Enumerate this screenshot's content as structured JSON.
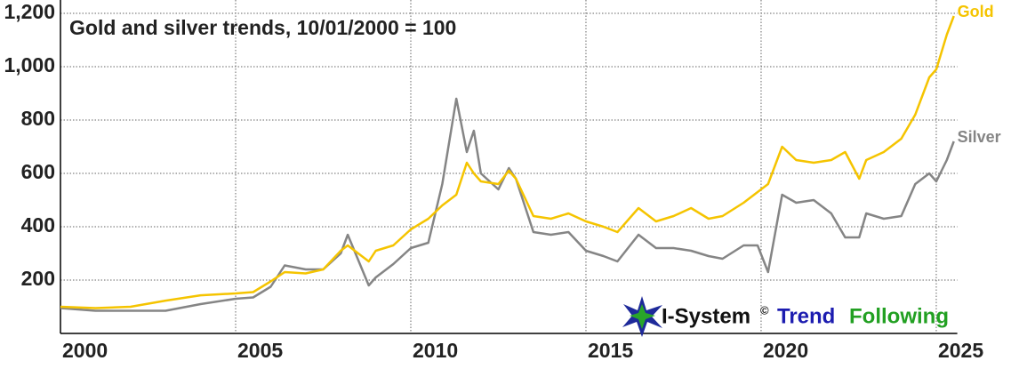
{
  "chart_data": {
    "type": "line",
    "title": "Gold and silver trends, 10/01/2000 = 100",
    "x": [
      2000,
      2001,
      2002,
      2003,
      2004,
      2005,
      2005.5,
      2006,
      2006.4,
      2007,
      2007.5,
      2008,
      2008.2,
      2008.8,
      2009,
      2009.5,
      2010,
      2010.5,
      2010.9,
      2011.3,
      2011.6,
      2011.8,
      2012,
      2012.5,
      2012.8,
      2013,
      2013.5,
      2014,
      2014.5,
      2015,
      2015.5,
      2015.9,
      2016.5,
      2017,
      2017.5,
      2018,
      2018.5,
      2018.9,
      2019.5,
      2019.9,
      2020.2,
      2020.6,
      2021,
      2021.5,
      2022,
      2022.4,
      2022.8,
      2023,
      2023.5,
      2024,
      2024.4,
      2024.8,
      2025,
      2025.3,
      2025.5
    ],
    "series": [
      {
        "name": "Gold",
        "color": "#f5c400",
        "values": [
          100,
          95,
          100,
          123,
          143,
          150,
          155,
          195,
          230,
          225,
          240,
          310,
          330,
          270,
          310,
          330,
          390,
          430,
          480,
          520,
          640,
          600,
          570,
          560,
          610,
          580,
          440,
          430,
          450,
          420,
          400,
          380,
          470,
          420,
          440,
          470,
          430,
          440,
          490,
          530,
          560,
          700,
          650,
          640,
          650,
          680,
          580,
          650,
          680,
          730,
          820,
          960,
          990,
          1120,
          1190
        ]
      },
      {
        "name": "Silver",
        "color": "#858585",
        "values": [
          95,
          85,
          85,
          85,
          110,
          130,
          135,
          175,
          255,
          240,
          240,
          300,
          370,
          180,
          210,
          260,
          320,
          340,
          560,
          880,
          680,
          760,
          600,
          540,
          620,
          580,
          380,
          370,
          380,
          310,
          290,
          270,
          370,
          320,
          320,
          310,
          290,
          280,
          330,
          330,
          230,
          520,
          490,
          500,
          450,
          360,
          360,
          450,
          430,
          440,
          560,
          600,
          570,
          650,
          720
        ]
      }
    ],
    "xlim": [
      2000,
      2025.6
    ],
    "xticks": [
      2000,
      2005,
      2010,
      2015,
      2020,
      2025
    ],
    "ylim": [
      0,
      1250
    ],
    "yticks": [
      200,
      400,
      600,
      800,
      {
        "value": 1000,
        "label": "1,000"
      },
      {
        "value": 1200,
        "label": "1,200"
      }
    ],
    "grid": true,
    "logo": {
      "name": "I-System",
      "mark": "©",
      "word1": "Trend",
      "word2": "Following"
    }
  }
}
